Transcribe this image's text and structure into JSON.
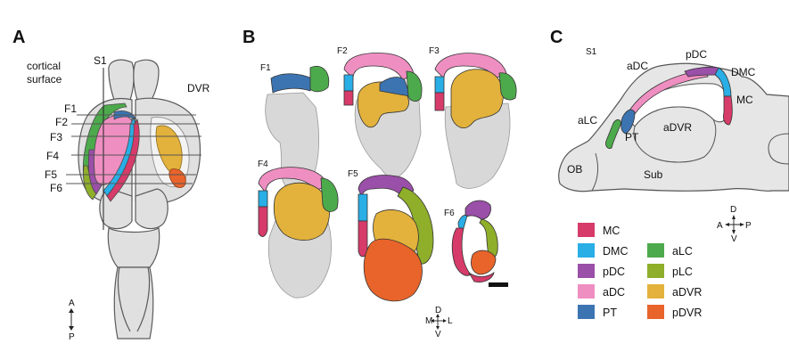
{
  "panels": {
    "a": {
      "letter": "A",
      "cortical_surface_line1": "cortical",
      "cortical_surface_line2": "surface",
      "s1_label": "S1",
      "dvr_label": "DVR",
      "frontal_sections": [
        "F1",
        "F2",
        "F3",
        "F4",
        "F5",
        "F6"
      ],
      "axis": {
        "top": "A",
        "bottom": "P"
      }
    },
    "b": {
      "letter": "B",
      "section_labels": [
        "F1",
        "F2",
        "F3",
        "F4",
        "F5",
        "F6"
      ],
      "axis": {
        "top": "D",
        "bottom": "V",
        "left": "M",
        "right": "L"
      }
    },
    "c": {
      "letter": "C",
      "s1_label": "S1",
      "region_labels": {
        "adc": "aDC",
        "pdc": "pDC",
        "dmc": "DMC",
        "mc": "MC",
        "alc": "aLC",
        "pt": "PT",
        "advr": "aDVR",
        "ob": "OB",
        "sub": "Sub"
      },
      "axis": {
        "top": "D",
        "bottom": "V",
        "left": "A",
        "right": "P"
      }
    }
  },
  "legend": [
    {
      "label": "MC",
      "color": "#d63b6a"
    },
    {
      "label": "DMC",
      "color": "#29aee6"
    },
    {
      "label": "pDC",
      "color": "#9a4fa8"
    },
    {
      "label": "aDC",
      "color": "#ef8fc1"
    },
    {
      "label": "PT",
      "color": "#3c74b2"
    },
    {
      "label": "aLC",
      "color": "#4daa4c"
    },
    {
      "label": "pLC",
      "color": "#8fae2a"
    },
    {
      "label": "aDVR",
      "color": "#e3b23c"
    },
    {
      "label": "pDVR",
      "color": "#e8642a"
    }
  ]
}
